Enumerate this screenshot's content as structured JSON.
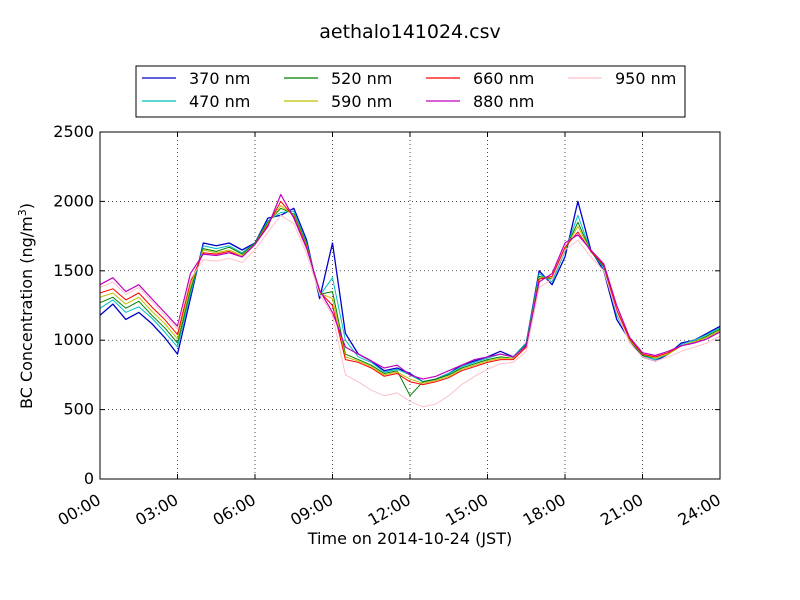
{
  "chart_data": {
    "type": "line",
    "title": "aethalo141024.csv",
    "xlabel": "Time on 2014-10-24 (JST)",
    "ylabel_main": "BC Concentration (ng/m",
    "ylabel_sup": "3",
    "ylabel_close": ")",
    "xlim": [
      0,
      24
    ],
    "ylim": [
      0,
      2500
    ],
    "x_ticks": [
      0,
      3,
      6,
      9,
      12,
      15,
      18,
      21,
      24
    ],
    "x_tick_labels": [
      "00:00",
      "03:00",
      "06:00",
      "09:00",
      "12:00",
      "15:00",
      "18:00",
      "21:00",
      "24:00"
    ],
    "y_ticks": [
      0,
      500,
      1000,
      1500,
      2000,
      2500
    ],
    "y_tick_labels": [
      "0",
      "500",
      "1000",
      "1500",
      "2000",
      "2500"
    ],
    "grid": true,
    "legend_position": "top-center",
    "x_hours": [
      0,
      0.5,
      1,
      1.5,
      2,
      2.5,
      3,
      3.5,
      4,
      4.5,
      5,
      5.5,
      6,
      6.5,
      7,
      7.5,
      8,
      8.5,
      9,
      9.5,
      10,
      10.5,
      11,
      11.5,
      12,
      12.5,
      13,
      13.5,
      14,
      14.5,
      15,
      15.5,
      16,
      16.5,
      17,
      17.5,
      18,
      18.5,
      19,
      19.5,
      20,
      20.5,
      21,
      21.5,
      22,
      22.5,
      23,
      23.5,
      24
    ],
    "series": [
      {
        "name": "370 nm",
        "color": "#0000cc",
        "width": 1.3,
        "values": [
          1180,
          1260,
          1150,
          1200,
          1120,
          1020,
          900,
          1300,
          1700,
          1680,
          1700,
          1650,
          1700,
          1880,
          1900,
          1950,
          1720,
          1300,
          1700,
          1050,
          900,
          850,
          780,
          800,
          760,
          700,
          720,
          760,
          820,
          850,
          880,
          920,
          880,
          980,
          1500,
          1400,
          1600,
          2000,
          1650,
          1500,
          1150,
          1000,
          880,
          850,
          900,
          980,
          1000,
          1050,
          1100
        ]
      },
      {
        "name": "470 nm",
        "color": "#00bfbf",
        "width": 1.0,
        "values": [
          1230,
          1290,
          1200,
          1240,
          1160,
          1060,
          950,
          1330,
          1680,
          1660,
          1680,
          1630,
          1700,
          1860,
          1920,
          1930,
          1700,
          1320,
          1450,
          1000,
          880,
          840,
          770,
          790,
          750,
          700,
          720,
          760,
          810,
          840,
          870,
          900,
          880,
          980,
          1480,
          1420,
          1640,
          1900,
          1640,
          1520,
          1180,
          1000,
          890,
          860,
          900,
          970,
          1000,
          1040,
          1090
        ]
      },
      {
        "name": "520 nm",
        "color": "#007f00",
        "width": 1.0,
        "values": [
          1270,
          1310,
          1230,
          1280,
          1180,
          1090,
          980,
          1360,
          1660,
          1640,
          1670,
          1620,
          1700,
          1850,
          1950,
          1910,
          1690,
          1330,
          1350,
          900,
          860,
          820,
          760,
          780,
          600,
          700,
          720,
          750,
          800,
          830,
          860,
          880,
          870,
          970,
          1460,
          1440,
          1650,
          1850,
          1640,
          1530,
          1200,
          1000,
          890,
          870,
          900,
          960,
          990,
          1030,
          1080
        ]
      },
      {
        "name": "590 nm",
        "color": "#bfbf00",
        "width": 1.0,
        "values": [
          1310,
          1340,
          1260,
          1310,
          1210,
          1120,
          1010,
          1390,
          1650,
          1630,
          1650,
          1610,
          1690,
          1840,
          1970,
          1900,
          1680,
          1340,
          1300,
          880,
          850,
          810,
          750,
          770,
          720,
          690,
          710,
          740,
          790,
          820,
          850,
          870,
          870,
          960,
          1450,
          1450,
          1660,
          1820,
          1640,
          1540,
          1210,
          1000,
          900,
          870,
          900,
          960,
          990,
          1020,
          1070
        ]
      },
      {
        "name": "660 nm",
        "color": "#ff0000",
        "width": 1.0,
        "values": [
          1340,
          1370,
          1290,
          1340,
          1240,
          1150,
          1040,
          1420,
          1630,
          1620,
          1640,
          1600,
          1690,
          1830,
          2000,
          1890,
          1670,
          1350,
          1250,
          860,
          840,
          800,
          740,
          760,
          700,
          680,
          700,
          730,
          780,
          810,
          840,
          860,
          860,
          950,
          1440,
          1460,
          1670,
          1780,
          1640,
          1540,
          1220,
          1010,
          900,
          880,
          910,
          960,
          980,
          1010,
          1060
        ]
      },
      {
        "name": "880 nm",
        "color": "#bf00bf",
        "width": 1.2,
        "values": [
          1400,
          1450,
          1350,
          1400,
          1300,
          1200,
          1100,
          1480,
          1620,
          1610,
          1630,
          1600,
          1690,
          1820,
          2050,
          1880,
          1660,
          1360,
          1200,
          950,
          900,
          850,
          800,
          820,
          750,
          720,
          740,
          780,
          820,
          860,
          880,
          900,
          880,
          960,
          1420,
          1480,
          1700,
          1760,
          1650,
          1550,
          1250,
          1020,
          910,
          890,
          920,
          960,
          980,
          1010,
          1060
        ]
      },
      {
        "name": "950 nm",
        "color": "#ffc0cb",
        "width": 1.0,
        "values": [
          1380,
          1420,
          1330,
          1380,
          1280,
          1180,
          1080,
          1440,
          1580,
          1570,
          1590,
          1560,
          1650,
          1780,
          1900,
          1840,
          1620,
          1330,
          1180,
          750,
          700,
          640,
          600,
          620,
          560,
          520,
          540,
          600,
          680,
          740,
          790,
          830,
          840,
          920,
          1380,
          1440,
          1650,
          1720,
          1600,
          1500,
          1200,
          980,
          880,
          850,
          880,
          920,
          950,
          980,
          1030
        ]
      }
    ]
  }
}
